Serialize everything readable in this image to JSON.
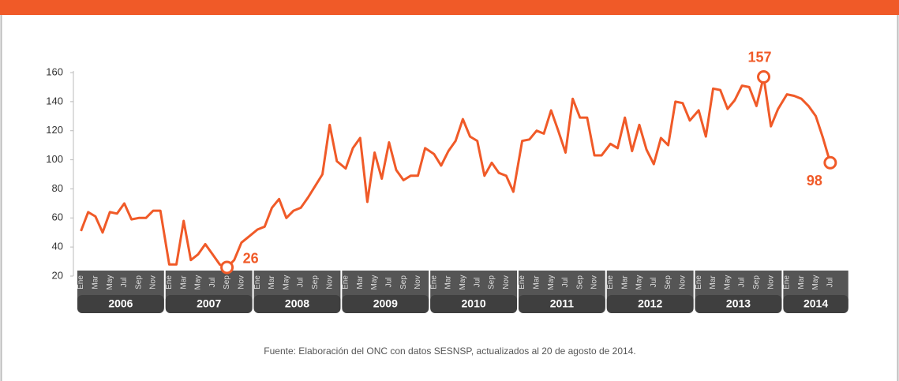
{
  "chart_data": {
    "type": "line",
    "years": [
      "2006",
      "2007",
      "2008",
      "2009",
      "2010",
      "2011",
      "2012",
      "2013",
      "2014"
    ],
    "categories": [
      "Ene",
      null,
      "Mar",
      null,
      "May",
      null,
      "Jul",
      null,
      "Sep",
      null,
      "Nov",
      null,
      "Ene",
      null,
      "Mar",
      null,
      "May",
      null,
      "Jul",
      null,
      "Sep",
      null,
      "Nov",
      null,
      "Ene",
      null,
      "Mar",
      null,
      "May",
      null,
      "Jul",
      null,
      "Sep",
      null,
      "Nov",
      null,
      "Ene",
      null,
      "Mar",
      null,
      "May",
      null,
      "Jul",
      null,
      "Sep",
      null,
      "Nov",
      null,
      "Ene",
      null,
      "Mar",
      null,
      "May",
      null,
      "Jul",
      null,
      "Sep",
      null,
      "Nov",
      null,
      "Ene",
      null,
      "Mar",
      null,
      "May",
      null,
      "Jul",
      null,
      "Sep",
      null,
      "Nov",
      null,
      "Ene",
      null,
      "Mar",
      null,
      "May",
      null,
      "Jul",
      null,
      "Sep",
      null,
      "Nov",
      null,
      "Ene",
      null,
      "Mar",
      null,
      "May",
      null,
      "Jul",
      null,
      "Sep",
      null,
      "Nov",
      null,
      "Ene",
      null,
      "Mar",
      null,
      "May",
      null,
      "Jul"
    ],
    "values": [
      51,
      64,
      61,
      50,
      64,
      63,
      70,
      59,
      60,
      60,
      65,
      65,
      28,
      28,
      58,
      31,
      35,
      42,
      35,
      28,
      26,
      31,
      43,
      47,
      52,
      54,
      67,
      73,
      60,
      65,
      67,
      74,
      82,
      90,
      124,
      99,
      94,
      108,
      115,
      71,
      105,
      87,
      112,
      93,
      86,
      89,
      89,
      108,
      104,
      96,
      106,
      113,
      128,
      116,
      113,
      89,
      98,
      91,
      89,
      78,
      113,
      114,
      120,
      118,
      134,
      120,
      105,
      142,
      129,
      129,
      103,
      103,
      111,
      108,
      129,
      106,
      124,
      107,
      97,
      115,
      110,
      140,
      139,
      127,
      134,
      116,
      149,
      148,
      135,
      141,
      151,
      150,
      137,
      157,
      123,
      135,
      145,
      144,
      142,
      137,
      130,
      115,
      98
    ],
    "value_labels": [
      null,
      null,
      null,
      null,
      null,
      null,
      null,
      null,
      null,
      null,
      null,
      null,
      null,
      null,
      null,
      null,
      null,
      null,
      null,
      null,
      "26",
      null,
      null,
      null,
      null,
      null,
      null,
      null,
      null,
      null,
      null,
      null,
      null,
      null,
      null,
      null,
      null,
      null,
      null,
      null,
      null,
      null,
      null,
      null,
      null,
      null,
      null,
      null,
      null,
      null,
      null,
      null,
      null,
      null,
      null,
      null,
      null,
      null,
      null,
      null,
      null,
      null,
      null,
      null,
      null,
      null,
      null,
      null,
      null,
      null,
      null,
      null,
      null,
      null,
      null,
      null,
      null,
      null,
      null,
      null,
      null,
      null,
      null,
      null,
      null,
      null,
      null,
      null,
      null,
      null,
      null,
      null,
      null,
      "157",
      null,
      null,
      null,
      null,
      null,
      null,
      null,
      null,
      "98"
    ],
    "color": "#f05a28",
    "ylim": [
      20,
      160
    ],
    "yticks": [
      20,
      40,
      60,
      80,
      100,
      120,
      140,
      160
    ],
    "source": "Fuente: Elaboración del ONC con datos SESNSP, actualizados al 20 de agosto de 2014."
  }
}
